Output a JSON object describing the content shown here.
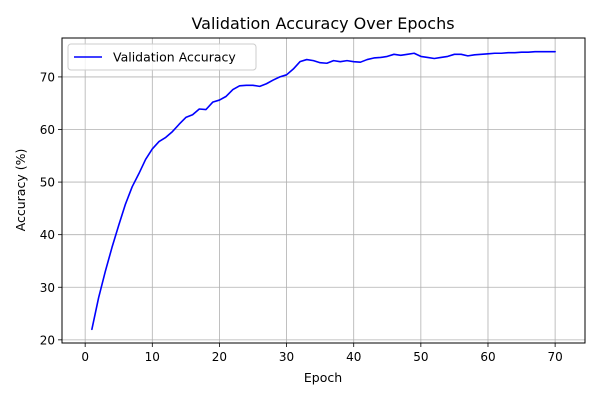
{
  "chart_data": {
    "type": "line",
    "title": "Validation Accuracy Over Epochs",
    "xlabel": "Epoch",
    "ylabel": "Accuracy (%)",
    "xlim": [
      -3.45,
      74.45
    ],
    "ylim": [
      19.4,
      77.4
    ],
    "xticks": [
      0,
      10,
      20,
      30,
      40,
      50,
      60,
      70
    ],
    "yticks": [
      20,
      30,
      40,
      50,
      60,
      70
    ],
    "grid": true,
    "legend_position": "top-left",
    "series": [
      {
        "name": "Validation Accuracy",
        "color": "#0000ff",
        "x": [
          1,
          2,
          3,
          4,
          5,
          6,
          7,
          8,
          9,
          10,
          11,
          12,
          13,
          14,
          15,
          16,
          17,
          18,
          19,
          20,
          21,
          22,
          23,
          24,
          25,
          26,
          27,
          28,
          29,
          30,
          31,
          32,
          33,
          34,
          35,
          36,
          37,
          38,
          39,
          40,
          41,
          42,
          43,
          44,
          45,
          46,
          47,
          48,
          49,
          50,
          51,
          52,
          53,
          54,
          55,
          56,
          57,
          58,
          59,
          60,
          61,
          62,
          63,
          64,
          65,
          66,
          67,
          68,
          69,
          70
        ],
        "y": [
          22.0,
          28.0,
          33.0,
          37.6,
          41.8,
          45.8,
          49.1,
          51.6,
          54.3,
          56.3,
          57.7,
          58.5,
          59.6,
          61.0,
          62.3,
          62.8,
          63.9,
          63.8,
          65.2,
          65.6,
          66.3,
          67.6,
          68.3,
          68.4,
          68.4,
          68.2,
          68.7,
          69.4,
          70.0,
          70.4,
          71.5,
          72.9,
          73.3,
          73.1,
          72.7,
          72.6,
          73.1,
          72.9,
          73.1,
          72.9,
          72.8,
          73.3,
          73.6,
          73.7,
          73.9,
          74.3,
          74.1,
          74.3,
          74.5,
          73.9,
          73.7,
          73.5,
          73.7,
          73.9,
          74.3,
          74.3,
          74.0,
          74.2,
          74.3,
          74.4,
          74.5,
          74.5,
          74.6,
          74.6,
          74.7,
          74.7,
          74.8,
          74.8,
          74.8,
          74.8
        ]
      }
    ]
  }
}
